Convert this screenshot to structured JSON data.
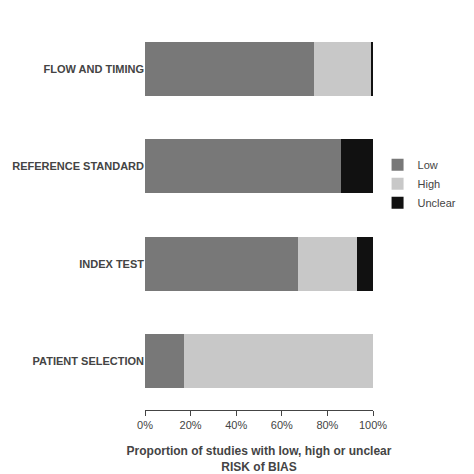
{
  "chart_data": {
    "type": "bar",
    "orientation": "horizontal",
    "stacked": true,
    "categories": [
      "FLOW AND TIMING",
      "REFERENCE STANDARD",
      "INDEX TEST",
      "PATIENT SELECTION"
    ],
    "series": [
      {
        "name": "Low",
        "color": "#787878",
        "values": [
          74,
          86,
          67,
          17
        ]
      },
      {
        "name": "High",
        "color": "#c8c8c8",
        "values": [
          25,
          0,
          26,
          83
        ]
      },
      {
        "name": "Unclear",
        "color": "#111111",
        "values": [
          1,
          14,
          7,
          0
        ]
      }
    ],
    "xlabel": "Proportion of studies with low, high or unclear\nRISK of BIAS",
    "xlim": [
      0,
      100
    ],
    "xticks": [
      {
        "value": 0,
        "label": "0%"
      },
      {
        "value": 20,
        "label": "20%"
      },
      {
        "value": 40,
        "label": "40%"
      },
      {
        "value": 60,
        "label": "60%"
      },
      {
        "value": 80,
        "label": "80%"
      },
      {
        "value": 100,
        "label": "100%"
      }
    ],
    "grid": false,
    "legend": "right"
  }
}
